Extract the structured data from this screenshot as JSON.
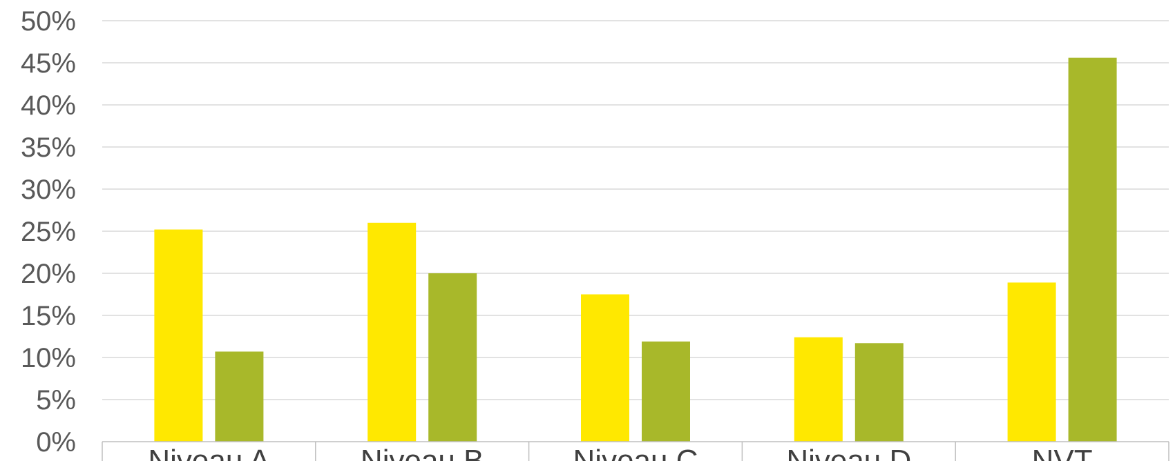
{
  "chart_data": {
    "type": "bar",
    "categories": [
      "Niveau A",
      "Niveau B",
      "Niveau C",
      "Niveau D",
      "NVT"
    ],
    "series": [
      {
        "color": "#FFE800",
        "values": [
          25.2,
          26.0,
          17.5,
          12.4,
          18.9
        ]
      },
      {
        "color": "#A8B82A",
        "values": [
          10.7,
          20.0,
          11.9,
          11.7,
          45.6
        ]
      }
    ],
    "ylim": [
      0,
      50
    ],
    "yticks": [
      "0%",
      "5%",
      "10%",
      "15%",
      "20%",
      "25%",
      "30%",
      "35%",
      "40%",
      "45%",
      "50%"
    ],
    "grid": true,
    "grid_color": "#D9D9D9",
    "axis_color": "#BFBFBF"
  }
}
